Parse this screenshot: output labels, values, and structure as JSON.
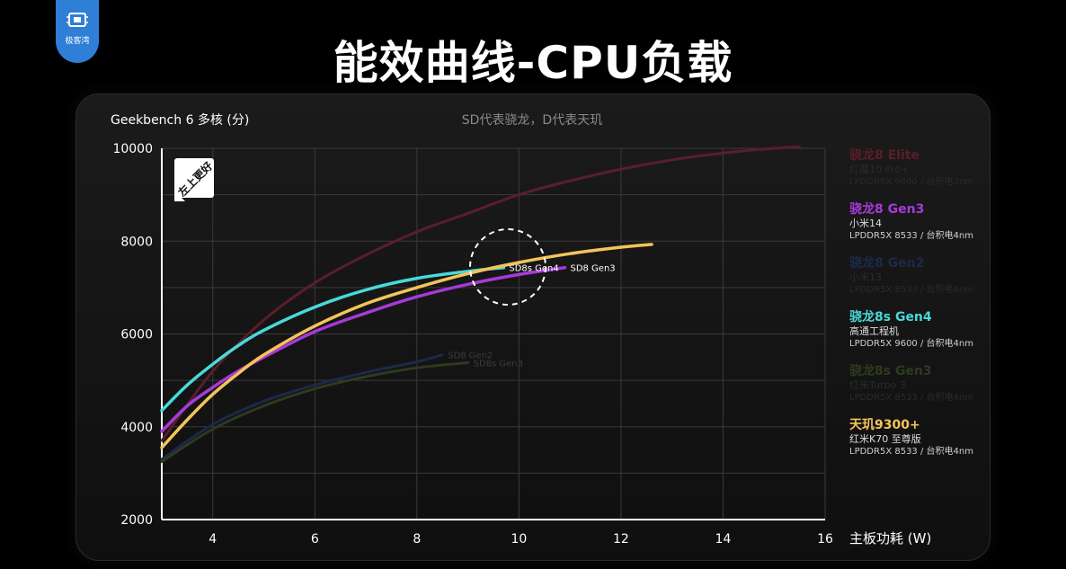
{
  "brand": {
    "logo_text": "极客湾"
  },
  "title": "能效曲线-CPU负载",
  "chart_data": {
    "type": "line",
    "title": "能效曲线-CPU负载",
    "ylabel": "Geekbench 6 多核 (分)",
    "xlabel": "主板功耗 (W)",
    "note": "SD代表骁龙，D代表天玑",
    "badge": "左上更好",
    "xlim": [
      3,
      16
    ],
    "ylim": [
      2000,
      10000
    ],
    "xticks": [
      4,
      6,
      8,
      10,
      12,
      14,
      16
    ],
    "yticks": [
      2000,
      4000,
      6000,
      8000,
      10000
    ],
    "grid": true,
    "legend_position": "right",
    "series": [
      {
        "name": "骁龙8 Elite",
        "device": "红魔10 Pro+",
        "memory": "LPDDR5X 9600 / 台积电3nm",
        "color": "#5a1e2a",
        "faded": true,
        "label": "",
        "points": [
          [
            3.0,
            3700
          ],
          [
            4.0,
            5200
          ],
          [
            5.0,
            6300
          ],
          [
            6.0,
            7100
          ],
          [
            7.0,
            7700
          ],
          [
            8.0,
            8200
          ],
          [
            9.0,
            8600
          ],
          [
            10.0,
            9000
          ],
          [
            11.0,
            9300
          ],
          [
            12.0,
            9550
          ],
          [
            13.0,
            9750
          ],
          [
            14.0,
            9900
          ],
          [
            15.0,
            10000
          ],
          [
            15.5,
            10030
          ]
        ]
      },
      {
        "name": "骁龙8 Gen3",
        "device": "小米14",
        "memory": "LPDDR5X 8533 / 台积电4nm",
        "color": "#a63ad8",
        "faded": false,
        "label": "SD8 Gen3",
        "points": [
          [
            3.0,
            3900
          ],
          [
            3.5,
            4450
          ],
          [
            4.0,
            4850
          ],
          [
            4.5,
            5200
          ],
          [
            5.0,
            5500
          ],
          [
            6.0,
            6050
          ],
          [
            7.0,
            6450
          ],
          [
            8.0,
            6800
          ],
          [
            9.0,
            7070
          ],
          [
            10.0,
            7280
          ],
          [
            10.9,
            7430
          ]
        ]
      },
      {
        "name": "骁龙8 Gen2",
        "device": "小米13",
        "memory": "LPDDR5X 8533 / 台积电4nm",
        "color": "#1b2a4a",
        "faded": true,
        "label": "SD8 Gen2",
        "points": [
          [
            3.0,
            3300
          ],
          [
            4.0,
            4050
          ],
          [
            5.0,
            4550
          ],
          [
            6.0,
            4900
          ],
          [
            7.0,
            5170
          ],
          [
            8.0,
            5400
          ],
          [
            8.5,
            5550
          ]
        ]
      },
      {
        "name": "骁龙8s Gen4",
        "device": "高通工程机",
        "memory": "LPDDR5X 9600 / 台积电4nm",
        "color": "#49d9d9",
        "faded": false,
        "label": "SD8s Gen4",
        "points": [
          [
            3.0,
            4350
          ],
          [
            3.5,
            4900
          ],
          [
            4.0,
            5350
          ],
          [
            4.5,
            5750
          ],
          [
            5.0,
            6080
          ],
          [
            6.0,
            6580
          ],
          [
            7.0,
            6950
          ],
          [
            8.0,
            7200
          ],
          [
            9.0,
            7350
          ],
          [
            9.7,
            7430
          ]
        ]
      },
      {
        "name": "骁龙8s Gen3",
        "device": "红米Turbo 3",
        "memory": "LPDDR5X 8533 / 台积电4nm",
        "color": "#2e3a1e",
        "faded": true,
        "label": "SD8s Gen3",
        "points": [
          [
            3.0,
            3250
          ],
          [
            4.0,
            3950
          ],
          [
            5.0,
            4450
          ],
          [
            6.0,
            4820
          ],
          [
            7.0,
            5080
          ],
          [
            8.0,
            5270
          ],
          [
            9.0,
            5380
          ]
        ]
      },
      {
        "name": "天玑9300+",
        "device": "红米K70 至尊版",
        "memory": "LPDDR5X 8533 / 台积电4nm",
        "color": "#f4c45a",
        "faded": false,
        "label": "",
        "points": [
          [
            3.0,
            3550
          ],
          [
            3.5,
            4150
          ],
          [
            4.0,
            4700
          ],
          [
            4.5,
            5150
          ],
          [
            5.0,
            5550
          ],
          [
            6.0,
            6170
          ],
          [
            7.0,
            6650
          ],
          [
            8.0,
            7000
          ],
          [
            9.0,
            7300
          ],
          [
            10.0,
            7540
          ],
          [
            11.0,
            7730
          ],
          [
            12.0,
            7870
          ],
          [
            12.6,
            7930
          ]
        ]
      }
    ]
  }
}
